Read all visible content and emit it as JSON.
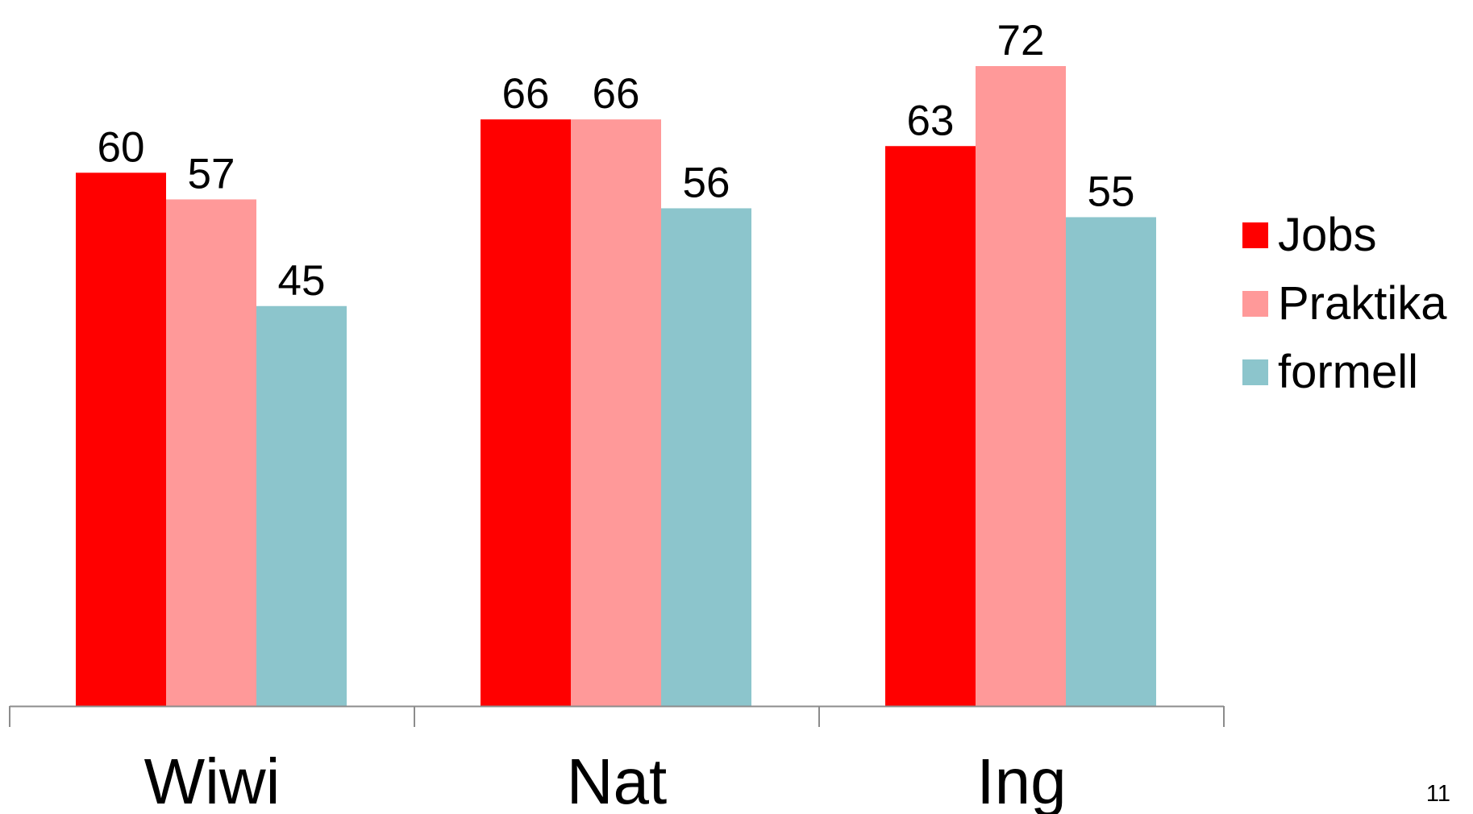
{
  "chart_data": {
    "type": "bar",
    "categories": [
      "Wiwi",
      "Nat",
      "Ing"
    ],
    "series": [
      {
        "name": "Jobs",
        "color": "#ff0000",
        "values": [
          60,
          66,
          63
        ]
      },
      {
        "name": "Praktika",
        "color": "#ff9999",
        "values": [
          57,
          66,
          72
        ]
      },
      {
        "name": "formell",
        "color": "#8cc5cc",
        "values": [
          45,
          56,
          55
        ]
      }
    ],
    "ylim": [
      0,
      72
    ],
    "grid": false,
    "legend_position": "right",
    "show_data_labels": true,
    "title": "",
    "xlabel": "",
    "ylabel": ""
  },
  "slide_number": "11"
}
